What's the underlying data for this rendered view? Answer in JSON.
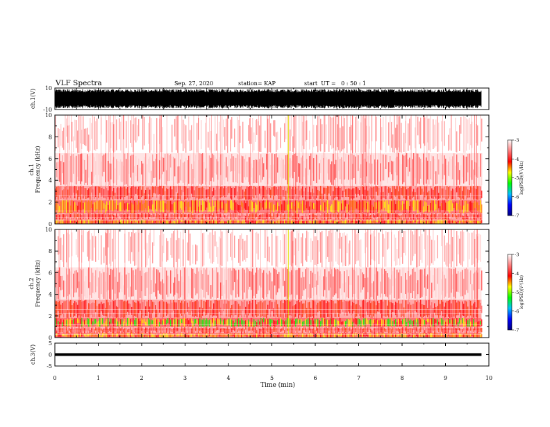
{
  "header": {
    "title": "VLF Spectra",
    "date": "Sep. 27, 2020",
    "station": "station= KAP",
    "start": "start  UT =   0 : 50 : 1"
  },
  "chart_data": [
    {
      "type": "line",
      "name": "ch1-waveform",
      "ylabel": "ch.1(V)",
      "ylim": [
        -10,
        10
      ],
      "y_ticks": [
        "10",
        "-10"
      ],
      "xlim": [
        0,
        10
      ],
      "data_xmax": 9.83,
      "amplitude_envelope": [
        6,
        9
      ],
      "color": "#000000"
    },
    {
      "type": "heatmap",
      "name": "ch1-spectrogram",
      "ylabel": "ch.1\nFrequency  (kHz)",
      "ylim": [
        0,
        10
      ],
      "y_ticks": [
        "0",
        "2",
        "4",
        "6",
        "8",
        "10"
      ],
      "xlim": [
        0,
        10
      ],
      "data_xmax": 9.83,
      "band_intensity_kHz": [
        [
          0.0,
          0.4,
          "yellow"
        ],
        [
          0.4,
          1.0,
          "red"
        ],
        [
          1.0,
          2.2,
          "yellow"
        ],
        [
          2.2,
          3.5,
          "red"
        ],
        [
          3.5,
          6.5,
          "light-red"
        ],
        [
          6.5,
          10.0,
          "pale-red"
        ]
      ],
      "colorbar": {
        "label": "log(PSD)(V²/Hz)",
        "range": [
          -7,
          -3
        ],
        "ticks": [
          "-3",
          "-4",
          "-5",
          "-6",
          "-7"
        ],
        "colors": [
          "#000080",
          "#0000ff",
          "#00c0ff",
          "#00ff00",
          "#ffff00",
          "#ff0000",
          "#ff8080",
          "#ffffff"
        ]
      }
    },
    {
      "type": "heatmap",
      "name": "ch2-spectrogram",
      "ylabel": "ch.2\nFrequency  (kHz)",
      "ylim": [
        0,
        10
      ],
      "y_ticks": [
        "0",
        "2",
        "4",
        "6",
        "8",
        "10"
      ],
      "xlim": [
        0,
        10
      ],
      "data_xmax": 9.83,
      "band_intensity_kHz": [
        [
          0.0,
          0.4,
          "yellow"
        ],
        [
          0.4,
          1.0,
          "red"
        ],
        [
          1.0,
          1.8,
          "green"
        ],
        [
          1.8,
          3.5,
          "red"
        ],
        [
          3.5,
          6.5,
          "light-red"
        ],
        [
          6.5,
          10.0,
          "pale-red"
        ]
      ],
      "colorbar": {
        "label": "log(PSD)(V²/Hz)",
        "range": [
          -7,
          -3
        ],
        "ticks": [
          "-3",
          "-4",
          "-5",
          "-6",
          "-7"
        ],
        "colors": [
          "#000080",
          "#0000ff",
          "#00c0ff",
          "#00ff00",
          "#ffff00",
          "#ff0000",
          "#ff8080",
          "#ffffff"
        ]
      }
    },
    {
      "type": "line",
      "name": "ch3-waveform",
      "ylabel": "ch.3(V)",
      "ylim": [
        -5,
        5
      ],
      "y_ticks": [
        "5",
        "0",
        "-5"
      ],
      "xlim": [
        0,
        10
      ],
      "data_xmax": 9.83,
      "amplitude_envelope": [
        0.3,
        0.6
      ],
      "color": "#000000"
    }
  ],
  "x_axis": {
    "label": "Time  (min)",
    "ticks": [
      "0",
      "1",
      "2",
      "3",
      "4",
      "5",
      "6",
      "7",
      "8",
      "9",
      "10"
    ]
  }
}
